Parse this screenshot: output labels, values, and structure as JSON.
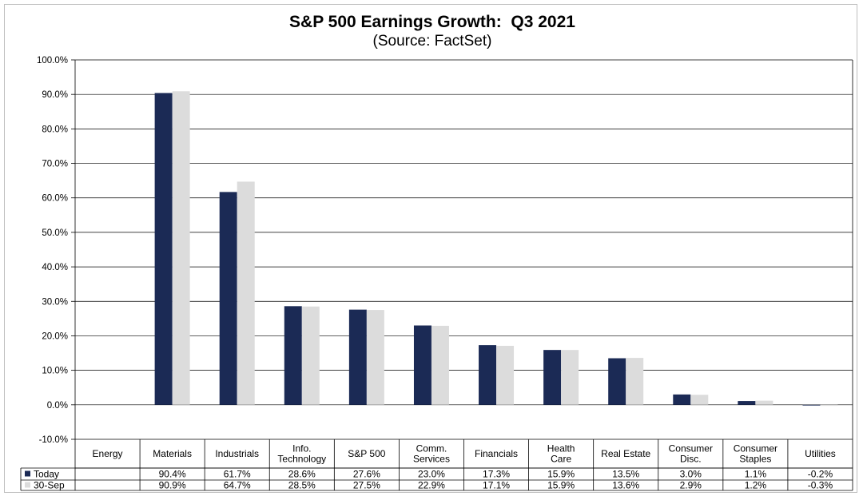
{
  "chart_data": {
    "type": "bar",
    "title": "S&P 500 Earnings Growth:  Q3 2021",
    "subtitle": "(Source: FactSet)",
    "xlabel": "",
    "ylabel": "",
    "ylim": [
      -10,
      100
    ],
    "yticks": [
      -10,
      0,
      10,
      20,
      30,
      40,
      50,
      60,
      70,
      80,
      90,
      100
    ],
    "grid": true,
    "categories": [
      [
        "Energy"
      ],
      [
        "Materials"
      ],
      [
        "Industrials"
      ],
      [
        "Info.",
        "Technology"
      ],
      [
        "S&P 500"
      ],
      [
        "Comm.",
        "Services"
      ],
      [
        "Financials"
      ],
      [
        "Health",
        "Care"
      ],
      [
        "Real Estate"
      ],
      [
        "Consumer",
        "Disc."
      ],
      [
        "Consumer",
        "Staples"
      ],
      [
        "Utilities"
      ]
    ],
    "series": [
      {
        "name": "Today",
        "color": "#1b2a55",
        "values": [
          null,
          90.4,
          61.7,
          28.6,
          27.6,
          23.0,
          17.3,
          15.9,
          13.5,
          3.0,
          1.1,
          -0.2
        ],
        "labels": [
          "",
          "90.4%",
          "61.7%",
          "28.6%",
          "27.6%",
          "23.0%",
          "17.3%",
          "15.9%",
          "13.5%",
          "3.0%",
          "1.1%",
          "-0.2%"
        ]
      },
      {
        "name": "30-Sep",
        "color": "#dcdcdc",
        "values": [
          null,
          90.9,
          64.7,
          28.5,
          27.5,
          22.9,
          17.1,
          15.9,
          13.6,
          2.9,
          1.2,
          -0.3
        ],
        "labels": [
          "",
          "90.9%",
          "64.7%",
          "28.5%",
          "27.5%",
          "22.9%",
          "17.1%",
          "15.9%",
          "13.6%",
          "2.9%",
          "1.2%",
          "-0.3%"
        ]
      }
    ]
  }
}
